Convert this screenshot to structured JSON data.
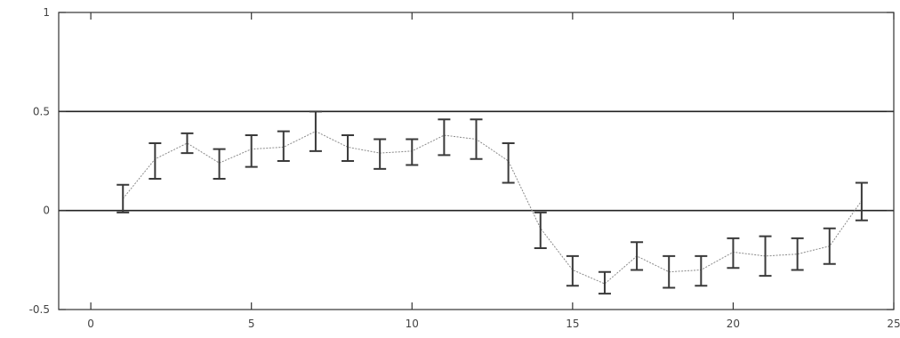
{
  "chart_data": {
    "type": "line",
    "title": "",
    "xlabel": "",
    "ylabel": "",
    "xlim": [
      -1,
      25
    ],
    "ylim": [
      -0.5,
      1
    ],
    "x_ticks": [
      0,
      5,
      10,
      15,
      20,
      25
    ],
    "y_ticks": [
      -0.5,
      0,
      0.5,
      1
    ],
    "x_tick_labels": [
      "0",
      "5",
      "10",
      "15",
      "20",
      "25"
    ],
    "y_tick_labels": [
      "-0.5",
      "0",
      "0.5",
      "1"
    ],
    "reference_lines_y": [
      0,
      0.5
    ],
    "grid": false,
    "series": [
      {
        "x": [
          1,
          2,
          3,
          4,
          5,
          6,
          7,
          8,
          9,
          10,
          11,
          12,
          13,
          14,
          15,
          16,
          17,
          18,
          19,
          20,
          21,
          22,
          23,
          24
        ],
        "y": [
          0.06,
          0.26,
          0.34,
          0.24,
          0.31,
          0.32,
          0.4,
          0.32,
          0.29,
          0.3,
          0.38,
          0.36,
          0.25,
          -0.09,
          -0.3,
          -0.37,
          -0.23,
          -0.31,
          -0.3,
          -0.21,
          -0.23,
          -0.22,
          -0.18,
          0.05
        ],
        "y_lower": [
          -0.01,
          0.16,
          0.29,
          0.16,
          0.22,
          0.25,
          0.3,
          0.25,
          0.21,
          0.23,
          0.28,
          0.26,
          0.14,
          -0.19,
          -0.38,
          -0.42,
          -0.3,
          -0.39,
          -0.38,
          -0.29,
          -0.33,
          -0.3,
          -0.27,
          -0.05
        ],
        "y_upper": [
          0.13,
          0.34,
          0.39,
          0.31,
          0.38,
          0.4,
          0.5,
          0.38,
          0.36,
          0.36,
          0.46,
          0.46,
          0.34,
          -0.01,
          -0.23,
          -0.31,
          -0.16,
          -0.23,
          -0.23,
          -0.14,
          -0.13,
          -0.14,
          -0.09,
          0.14
        ]
      }
    ]
  }
}
